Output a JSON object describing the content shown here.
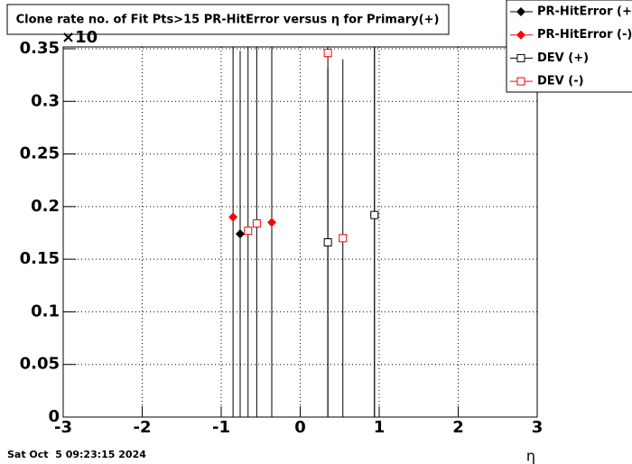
{
  "chart_data": {
    "type": "scatter",
    "title": "Clone rate no. of Fit Pts>15 PR-HitError versus η for Primary(+)",
    "x_label": "η",
    "y_multiplier": "×10",
    "timestamp": "Sat Oct  5 09:23:15 2024",
    "xlim": [
      -3,
      3
    ],
    "xticks": [
      -3,
      -2,
      -1,
      0,
      1,
      2,
      3
    ],
    "ylim": [
      0,
      0.35
    ],
    "yticks": [
      0,
      0.05,
      0.1,
      0.15,
      0.2,
      0.25,
      0.3,
      0.35
    ],
    "grid": true,
    "legend": "top-right",
    "series": [
      {
        "name": "PR-HitError (+)",
        "color": "#000000",
        "marker": "diamond",
        "x": [
          -0.76,
          0.94
        ],
        "values": [
          0.174,
          0.192
        ],
        "errors": [
          0.174,
          0.192
        ]
      },
      {
        "name": "PR-HitError (-)",
        "color": "#ff0000",
        "marker": "diamond",
        "x": [
          -0.85,
          -0.36
        ],
        "values": [
          0.19,
          0.185
        ],
        "errors": [
          0.19,
          0.185
        ]
      },
      {
        "name": "DEV (+)",
        "color": "#000000",
        "marker": "square-open",
        "x": [
          0.35,
          0.94
        ],
        "values": [
          0.166,
          0.192
        ],
        "errors": [
          0.166,
          0.192
        ]
      },
      {
        "name": "DEV (-)",
        "color": "#ff0000",
        "marker": "square-open",
        "x": [
          -0.66,
          -0.55,
          0.35,
          0.54
        ],
        "values": [
          0.177,
          0.184,
          0.346,
          0.17
        ],
        "errors": [
          0.177,
          0.184,
          0.346,
          0.17
        ]
      }
    ]
  }
}
